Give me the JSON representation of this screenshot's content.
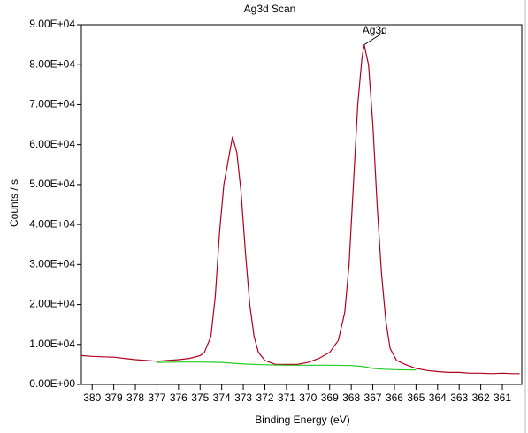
{
  "chart_data": {
    "type": "line",
    "title": "Ag3d Scan",
    "x_label": "Binding Energy (eV)",
    "y_label": "Counts / s",
    "xlim": [
      380.5,
      360.1
    ],
    "ylim": [
      0,
      90000
    ],
    "xticks": [
      380,
      379,
      378,
      377,
      376,
      375,
      374,
      373,
      372,
      371,
      370,
      369,
      368,
      367,
      366,
      365,
      364,
      363,
      362,
      361
    ],
    "yticks": [
      {
        "value": 0,
        "label": "0.00E+00"
      },
      {
        "value": 10000,
        "label": "1.00E+04"
      },
      {
        "value": 20000,
        "label": "2.00E+04"
      },
      {
        "value": 30000,
        "label": "3.00E+04"
      },
      {
        "value": 40000,
        "label": "4.00E+04"
      },
      {
        "value": 50000,
        "label": "5.00E+04"
      },
      {
        "value": 60000,
        "label": "6.00E+04"
      },
      {
        "value": 70000,
        "label": "7.00E+04"
      },
      {
        "value": 80000,
        "label": "8.00E+04"
      },
      {
        "value": 90000,
        "label": "9.00E+04"
      }
    ],
    "grid": false,
    "series": [
      {
        "color": "#b0001e",
        "x": [
          380.5,
          380,
          379.5,
          379,
          378.5,
          378,
          377.5,
          377,
          376.5,
          376,
          375.5,
          375,
          374.8,
          374.5,
          374.3,
          374.1,
          373.9,
          373.7,
          373.5,
          373.3,
          373.1,
          372.9,
          372.7,
          372.5,
          372.3,
          372,
          371.5,
          371,
          370.5,
          370,
          369.5,
          369,
          368.6,
          368.3,
          368.1,
          367.9,
          367.7,
          367.5,
          367.4,
          367.2,
          367,
          366.8,
          366.6,
          366.4,
          366.2,
          365.9,
          365.5,
          365,
          364.5,
          364,
          363.5,
          363,
          362.5,
          362,
          361.5,
          361,
          360.5,
          360.2
        ],
        "values": [
          7200,
          7000,
          6900,
          6800,
          6500,
          6200,
          6000,
          5800,
          6000,
          6200,
          6500,
          7200,
          8000,
          12000,
          22000,
          38000,
          50000,
          56000,
          62000,
          58000,
          48000,
          33000,
          20000,
          12000,
          8000,
          6000,
          5000,
          5000,
          5000,
          5500,
          6500,
          8000,
          11000,
          18000,
          30000,
          50000,
          70000,
          82000,
          85000,
          80000,
          65000,
          45000,
          28000,
          16000,
          9000,
          6000,
          5000,
          4000,
          3500,
          3200,
          3000,
          3000,
          2800,
          2800,
          2700,
          2800,
          2700,
          2700
        ]
      },
      {
        "color": "#22cc22",
        "x": [
          377,
          376,
          375,
          374,
          373,
          372,
          371,
          370,
          369,
          368,
          367.5,
          367,
          366.5,
          366,
          365
        ],
        "values": [
          5500,
          5600,
          5600,
          5500,
          5100,
          4900,
          4800,
          4800,
          4800,
          4700,
          4500,
          4000,
          3800,
          3700,
          3600
        ]
      }
    ],
    "annotations": [
      {
        "text": "Ag3d",
        "x": 367.4,
        "y": 85000
      }
    ]
  }
}
